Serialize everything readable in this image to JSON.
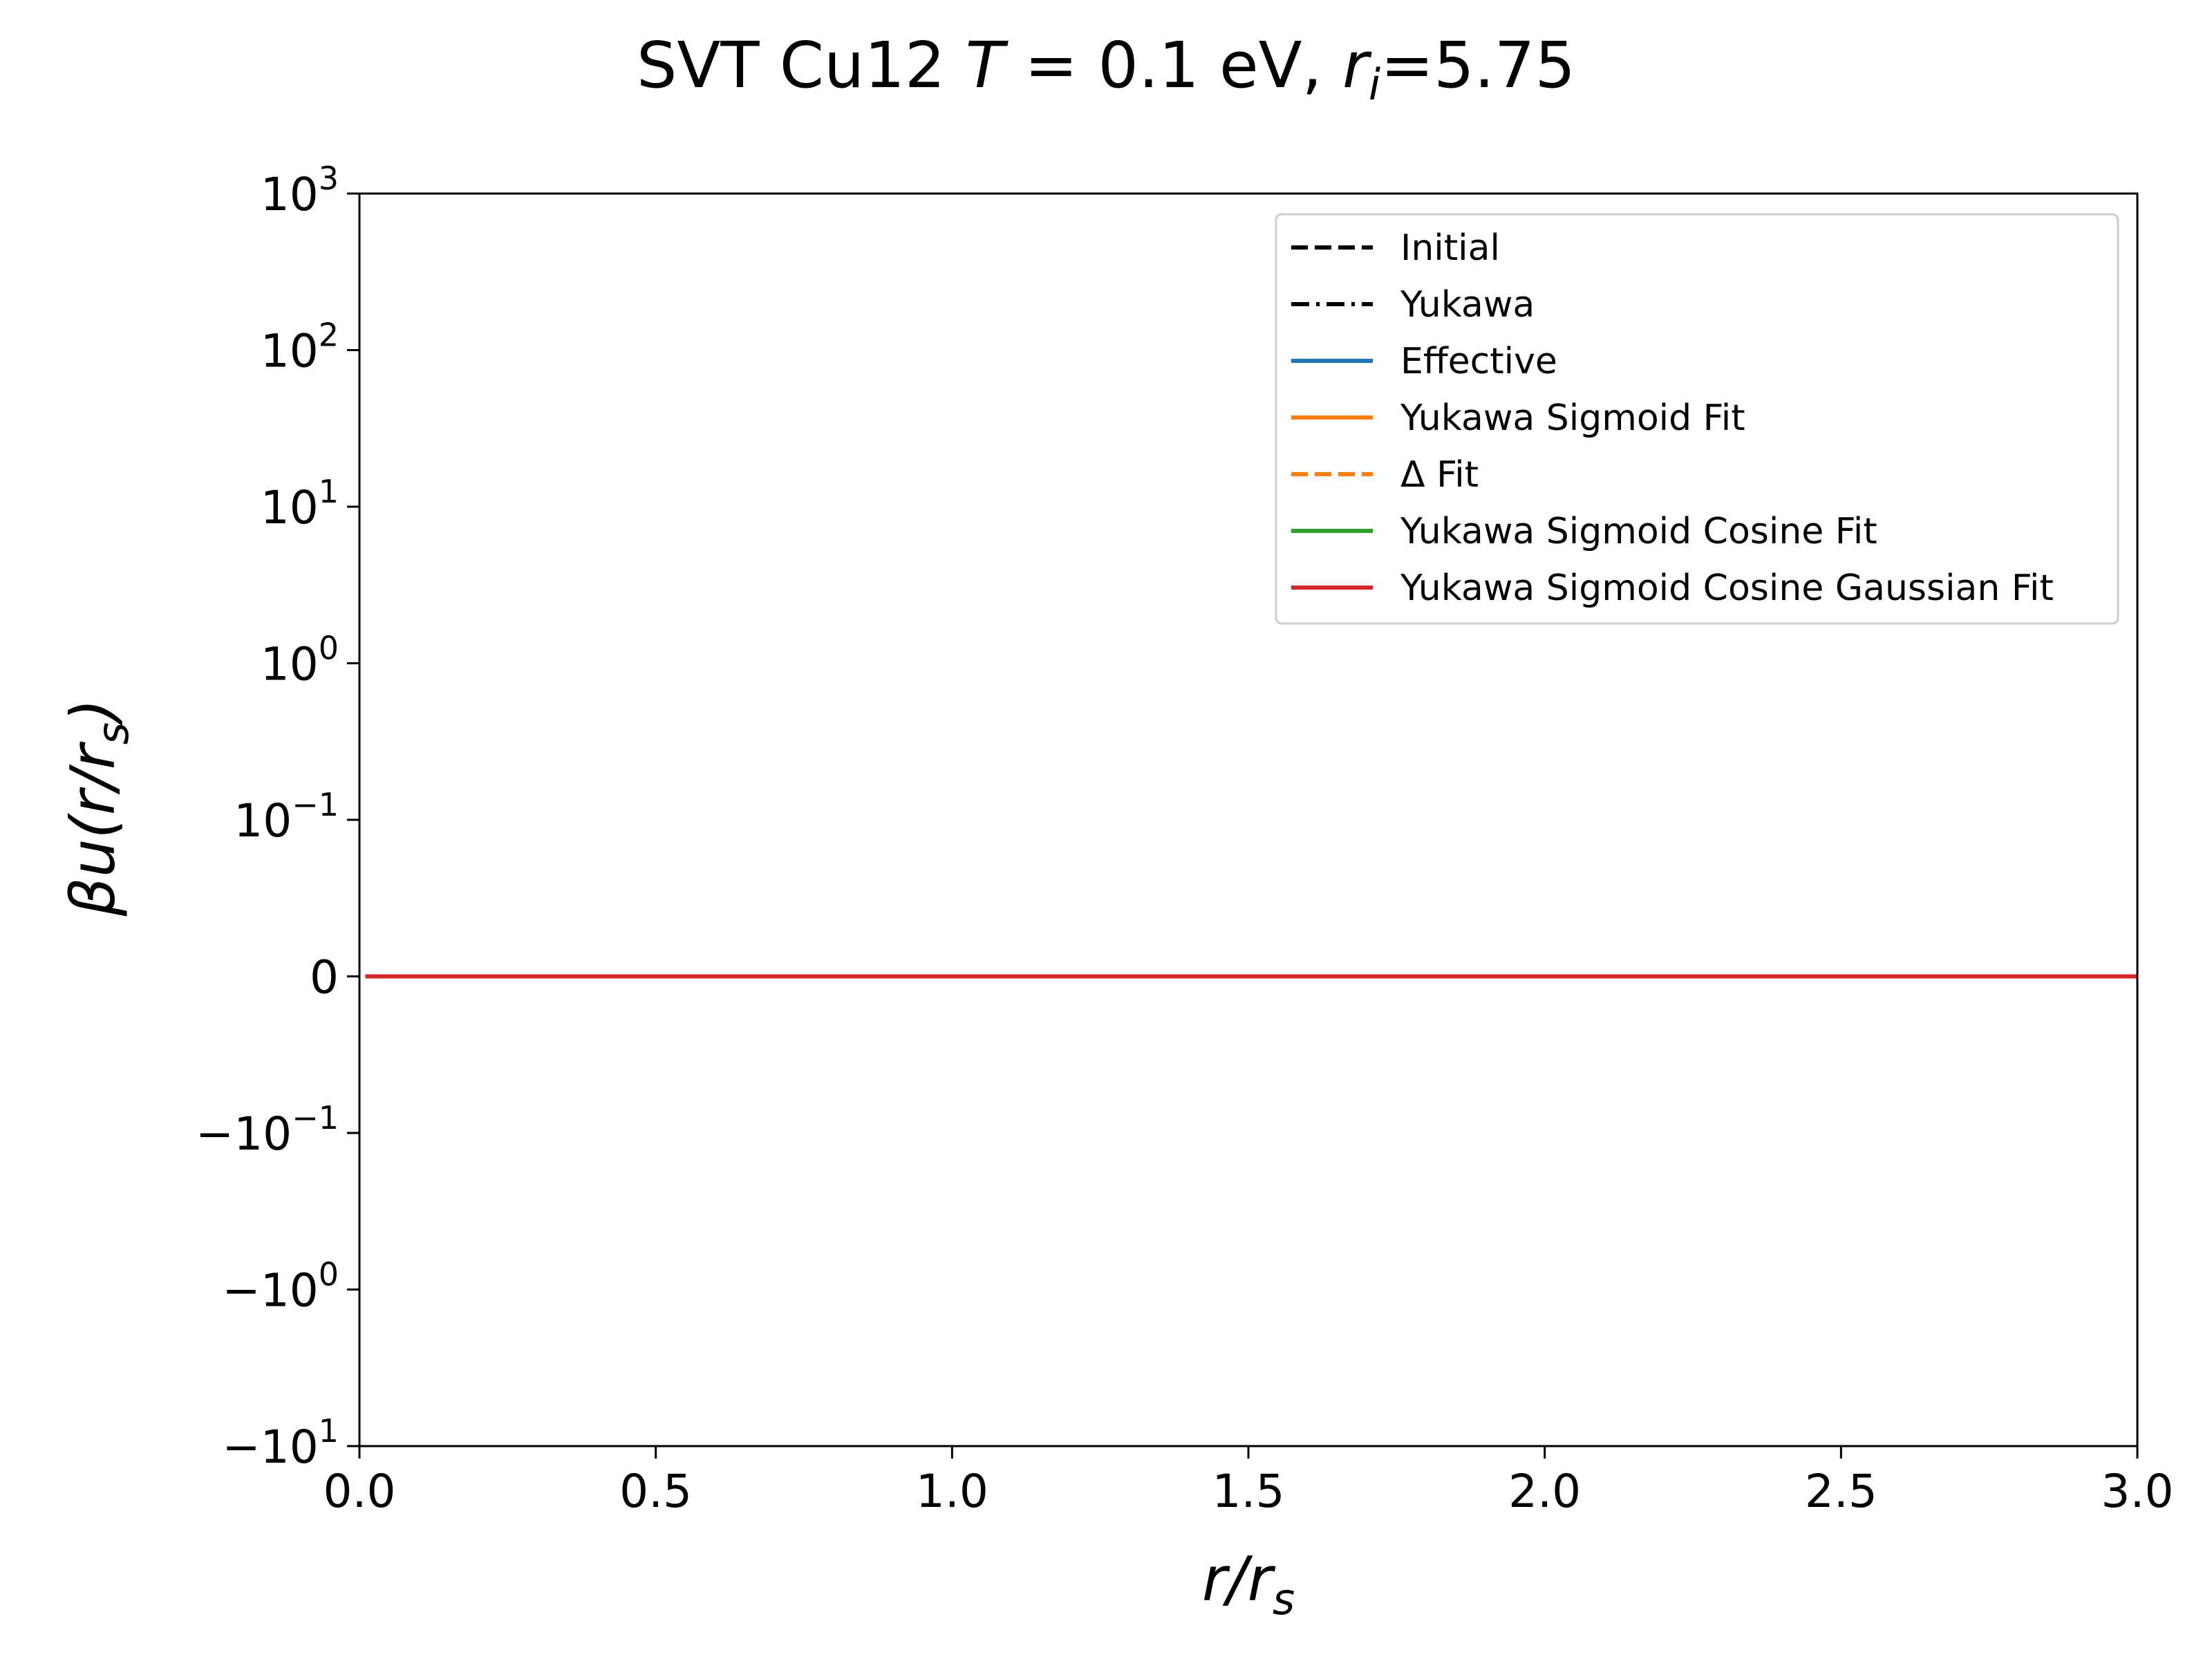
{
  "chart_data": {
    "type": "line",
    "title": {
      "parts": [
        "SVT Cu12 ",
        "T",
        " = 0.1 eV, ",
        "r",
        "i",
        "=5.75"
      ]
    },
    "xlabel": {
      "main": "r/r",
      "sub": "s"
    },
    "ylabel": {
      "prefix": "βu(r/r",
      "sub": "s",
      "suffix": ")"
    },
    "xlim": [
      0.0,
      3.0
    ],
    "x_ticks": [
      0.0,
      0.5,
      1.0,
      1.5,
      2.0,
      2.5,
      3.0
    ],
    "x_tick_labels": [
      "0.0",
      "0.5",
      "1.0",
      "1.5",
      "2.0",
      "2.5",
      "3.0"
    ],
    "yscale": "symlog",
    "ylim": [
      -10,
      1000
    ],
    "y_ticks": [
      {
        "base": "10",
        "exp": "3",
        "value": 1000
      },
      {
        "base": "10",
        "exp": "2",
        "value": 100
      },
      {
        "base": "10",
        "exp": "1",
        "value": 10
      },
      {
        "base": "10",
        "exp": "0",
        "value": 1
      },
      {
        "base": "10",
        "exp": "−1",
        "value": 0.1
      },
      {
        "base": "0",
        "exp": "",
        "value": 0
      },
      {
        "base": "−10",
        "exp": "−1",
        "value": -0.1
      },
      {
        "base": "−10",
        "exp": "0",
        "value": -1
      },
      {
        "base": "−10",
        "exp": "1",
        "value": -10
      }
    ],
    "grid": false,
    "legend_position": "top-right",
    "series": [
      {
        "name": "Initial",
        "color": "#000000",
        "dash": "dashed",
        "x": [],
        "y": []
      },
      {
        "name": "Yukawa",
        "color": "#000000",
        "dash": "dashdot",
        "x": [],
        "y": []
      },
      {
        "name": "Effective",
        "color": "#1f77b4",
        "dash": "solid",
        "x": [
          0.01,
          3.0
        ],
        "y": [
          0,
          0
        ]
      },
      {
        "name": "Yukawa Sigmoid Fit",
        "color": "#ff7f0e",
        "dash": "solid",
        "x": [
          0.01,
          3.0
        ],
        "y": [
          0,
          0
        ]
      },
      {
        "name": "Δ Fit",
        "color": "#ff7f0e",
        "dash": "dashed",
        "x": [
          0.01,
          3.0
        ],
        "y": [
          0,
          0
        ]
      },
      {
        "name": "Yukawa Sigmoid Cosine Fit",
        "color": "#2ca02c",
        "dash": "solid",
        "x": [
          0.01,
          3.0
        ],
        "y": [
          0,
          0
        ]
      },
      {
        "name": "Yukawa Sigmoid Cosine Gaussian Fit",
        "color": "#d62728",
        "dash": "solid",
        "x": [
          0.01,
          3.0
        ],
        "y": [
          0,
          0
        ]
      }
    ]
  }
}
